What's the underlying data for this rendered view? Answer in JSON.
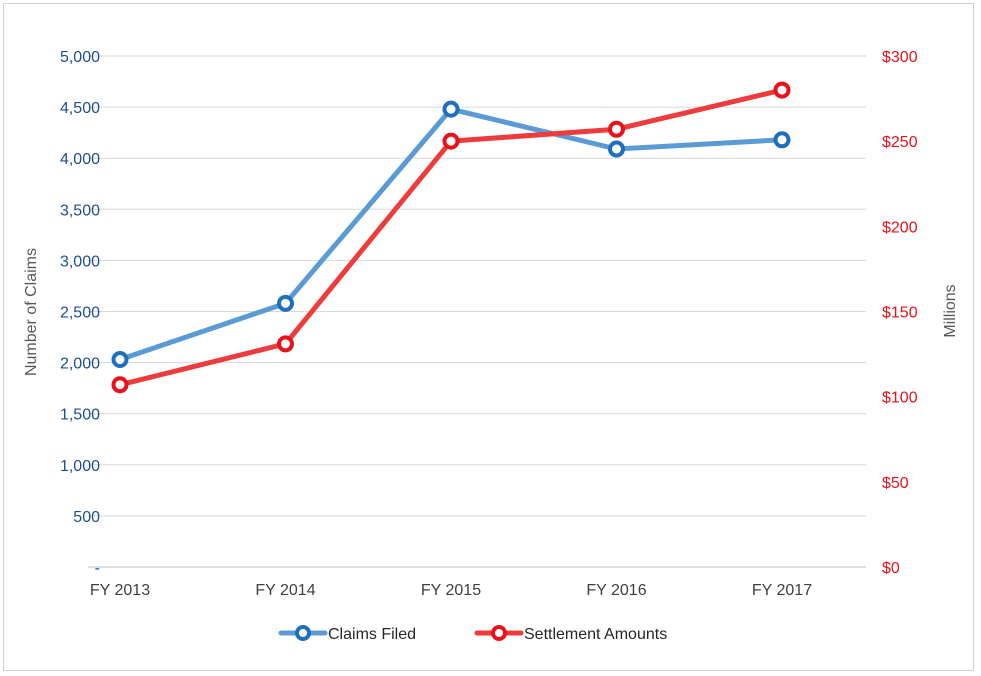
{
  "chart_data": {
    "type": "line",
    "categories": [
      "FY 2013",
      "FY 2014",
      "FY 2015",
      "FY 2016",
      "FY 2017"
    ],
    "series": [
      {
        "name": "Claims Filed",
        "axis": "left",
        "color": "#5b9bd5",
        "marker_color": "#1f6fbf",
        "values": [
          2030,
          2580,
          4480,
          4090,
          4180
        ]
      },
      {
        "name": "Settlement Amounts",
        "axis": "right",
        "color": "#ee3b3b",
        "marker_color": "#e8121a",
        "values": [
          107,
          131,
          250,
          257,
          280
        ]
      }
    ],
    "y_left": {
      "label": "Number of Claims",
      "ylim": [
        0,
        5000
      ],
      "ticks": [
        0,
        500,
        1000,
        1500,
        2000,
        2500,
        3000,
        3500,
        4000,
        4500,
        5000
      ],
      "tick_labels": [
        "-",
        "500",
        "1,000",
        "1,500",
        "2,000",
        "2,500",
        "3,000",
        "3,500",
        "4,000",
        "4,500",
        "5,000"
      ],
      "color": "#1f4e8c"
    },
    "y_right": {
      "label": "Millions",
      "ylim": [
        0,
        300
      ],
      "ticks": [
        0,
        50,
        100,
        150,
        200,
        250,
        300
      ],
      "tick_labels": [
        "$0",
        "$50",
        "$100",
        "$150",
        "$200",
        "$250",
        "$300"
      ],
      "color": "#e8121a"
    },
    "grid": true,
    "legend": "bottom"
  }
}
